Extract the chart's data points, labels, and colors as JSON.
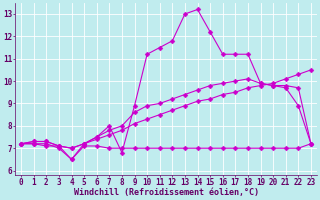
{
  "xlabel": "Windchill (Refroidissement éolien,°C)",
  "xlim": [
    -0.5,
    23.5
  ],
  "ylim": [
    5.8,
    13.5
  ],
  "xticks": [
    0,
    1,
    2,
    3,
    4,
    5,
    6,
    7,
    8,
    9,
    10,
    11,
    12,
    13,
    14,
    15,
    16,
    17,
    18,
    19,
    20,
    21,
    22,
    23
  ],
  "yticks": [
    6,
    7,
    8,
    9,
    10,
    11,
    12,
    13
  ],
  "bg_color": "#c0ecee",
  "grid_color": "#ffffff",
  "line_color": "#cc00cc",
  "marker": "D",
  "line1_x": [
    0,
    1,
    2,
    3,
    4,
    5,
    6,
    7,
    8,
    9,
    10,
    11,
    12,
    13,
    14,
    15,
    16,
    17,
    18,
    19,
    20,
    21,
    22,
    23
  ],
  "line1_y": [
    7.2,
    7.2,
    7.1,
    7.1,
    6.5,
    7.1,
    7.1,
    7.0,
    7.0,
    7.0,
    7.0,
    7.0,
    7.0,
    7.0,
    7.0,
    7.0,
    7.0,
    7.0,
    7.0,
    7.0,
    7.0,
    7.0,
    7.0,
    7.2
  ],
  "line2_x": [
    0,
    1,
    2,
    3,
    4,
    5,
    6,
    7,
    8,
    9,
    10,
    11,
    12,
    13,
    14,
    15,
    16,
    17,
    18,
    19,
    20,
    21,
    22,
    23
  ],
  "line2_y": [
    7.2,
    7.3,
    7.3,
    7.1,
    7.0,
    7.2,
    7.4,
    7.6,
    7.8,
    8.1,
    8.3,
    8.5,
    8.7,
    8.9,
    9.1,
    9.2,
    9.4,
    9.5,
    9.7,
    9.8,
    9.9,
    10.1,
    10.3,
    10.5
  ],
  "line3_x": [
    0,
    1,
    2,
    3,
    4,
    5,
    6,
    7,
    8,
    9,
    10,
    11,
    12,
    13,
    14,
    15,
    16,
    17,
    18,
    19,
    20,
    21,
    22,
    23
  ],
  "line3_y": [
    7.2,
    7.3,
    7.3,
    7.1,
    7.0,
    7.2,
    7.5,
    7.8,
    8.0,
    8.6,
    8.9,
    9.0,
    9.2,
    9.4,
    9.6,
    9.8,
    9.9,
    10.0,
    10.1,
    9.9,
    9.8,
    9.8,
    9.7,
    7.2
  ],
  "line4_x": [
    0,
    1,
    2,
    3,
    4,
    5,
    6,
    7,
    8,
    9,
    10,
    11,
    12,
    13,
    14,
    15,
    16,
    17,
    18,
    19,
    20,
    21,
    22,
    23
  ],
  "line4_y": [
    7.2,
    7.2,
    7.2,
    7.0,
    6.5,
    7.2,
    7.5,
    8.0,
    6.8,
    8.9,
    11.2,
    11.5,
    11.8,
    13.0,
    13.2,
    12.2,
    11.2,
    11.2,
    11.2,
    9.9,
    9.8,
    9.7,
    8.9,
    7.2
  ],
  "markersize": 2.5,
  "linewidth": 0.8,
  "tick_fontsize": 5.5,
  "xlabel_fontsize": 6.0,
  "font_family": "monospace"
}
